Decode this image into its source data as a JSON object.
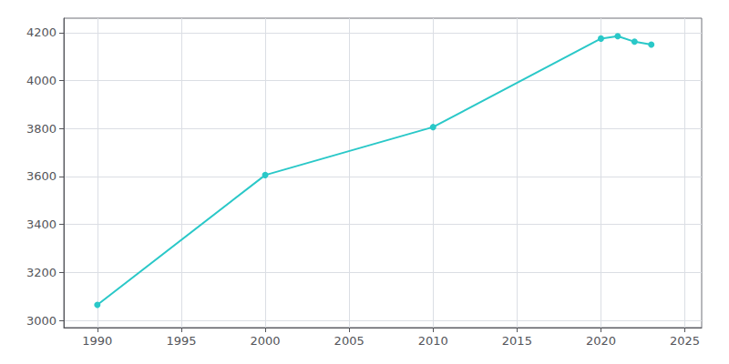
{
  "chart_data": {
    "type": "line",
    "x": [
      1990,
      2000,
      2010,
      2020,
      2021,
      2022,
      2023
    ],
    "values": [
      3065,
      3606,
      3806,
      4175,
      4185,
      4162,
      4150
    ],
    "color": "#2ac8c8",
    "marker": "circle",
    "xlim": [
      1988,
      2026
    ],
    "ylim": [
      2970,
      4260
    ],
    "xticks": [
      1990,
      1995,
      2000,
      2005,
      2010,
      2015,
      2020,
      2025
    ],
    "yticks": [
      3000,
      3200,
      3400,
      3600,
      3800,
      4000,
      4200
    ],
    "grid": true
  }
}
